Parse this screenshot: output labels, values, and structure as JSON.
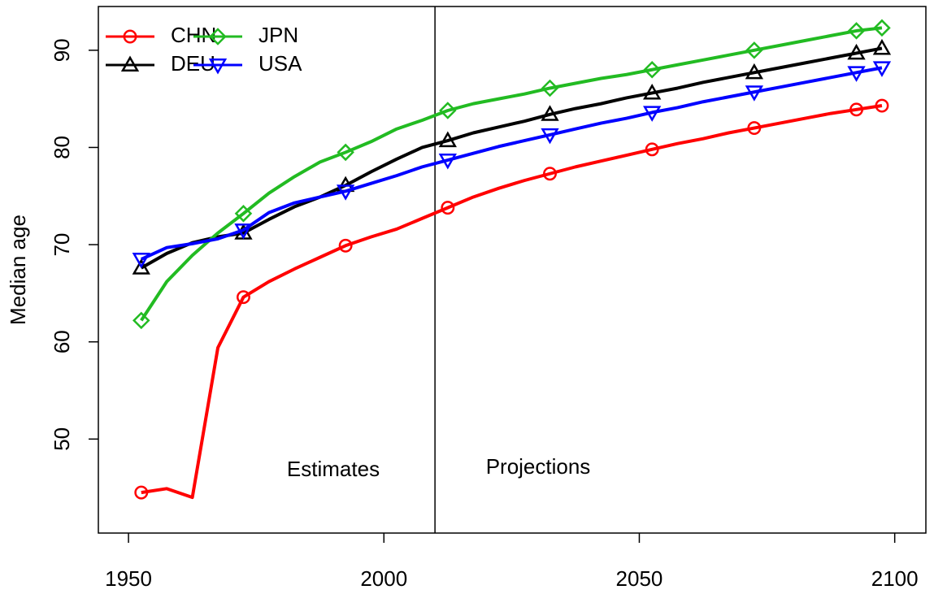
{
  "chart_data": {
    "type": "line",
    "y_label": "Median age",
    "annotations": [
      "Estimates",
      "Projections"
    ],
    "vline_x": 2010,
    "x": [
      1952.5,
      1957.5,
      1962.5,
      1967.5,
      1972.5,
      1977.5,
      1982.5,
      1987.5,
      1992.5,
      1997.5,
      2002.5,
      2007.5,
      2012.5,
      2017.5,
      2022.5,
      2027.5,
      2032.5,
      2037.5,
      2042.5,
      2047.5,
      2052.5,
      2057.5,
      2062.5,
      2067.5,
      2072.5,
      2077.5,
      2082.5,
      2087.5,
      2092.5,
      2097.5
    ],
    "series": [
      {
        "name": "CHN",
        "color": "#ff0000",
        "marker": "circle",
        "values": [
          44.5,
          44.9,
          44.0,
          59.4,
          64.6,
          66.2,
          67.5,
          68.7,
          69.9,
          70.8,
          71.6,
          72.7,
          73.8,
          74.9,
          75.8,
          76.6,
          77.3,
          78.0,
          78.6,
          79.2,
          79.8,
          80.4,
          80.9,
          81.5,
          82.0,
          82.5,
          83.0,
          83.5,
          83.9,
          84.3
        ]
      },
      {
        "name": "DEU",
        "color": "#000000",
        "marker": "triangle",
        "values": [
          67.6,
          69.1,
          70.2,
          70.8,
          71.2,
          72.6,
          73.9,
          74.9,
          76.1,
          77.5,
          78.8,
          80.0,
          80.7,
          81.5,
          82.1,
          82.7,
          83.4,
          84.0,
          84.5,
          85.1,
          85.6,
          86.1,
          86.7,
          87.2,
          87.7,
          88.2,
          88.7,
          89.2,
          89.7,
          90.2
        ]
      },
      {
        "name": "JPN",
        "color": "#22bb22",
        "marker": "diamond",
        "values": [
          62.2,
          66.2,
          68.9,
          71.2,
          73.2,
          75.3,
          77.0,
          78.5,
          79.5,
          80.6,
          81.9,
          82.8,
          83.8,
          84.5,
          85.0,
          85.5,
          86.1,
          86.6,
          87.1,
          87.5,
          88.0,
          88.5,
          89.0,
          89.5,
          90.0,
          90.5,
          91.0,
          91.5,
          92.0,
          92.3
        ]
      },
      {
        "name": "USA",
        "color": "#0000ff",
        "marker": "triangle-down",
        "values": [
          68.5,
          69.7,
          70.1,
          70.6,
          71.5,
          73.3,
          74.3,
          74.9,
          75.5,
          76.3,
          77.1,
          78.0,
          78.7,
          79.4,
          80.1,
          80.7,
          81.3,
          81.9,
          82.5,
          83.0,
          83.6,
          84.1,
          84.7,
          85.2,
          85.7,
          86.2,
          86.7,
          87.2,
          87.7,
          88.2
        ]
      }
    ],
    "xlim": [
      1944.1,
      2106.1
    ],
    "xticks": [
      1950,
      2000,
      2050,
      2100
    ],
    "ylim": [
      40.33,
      94.5
    ],
    "yticks": [
      50,
      60,
      70,
      80,
      90
    ],
    "grid": false
  }
}
